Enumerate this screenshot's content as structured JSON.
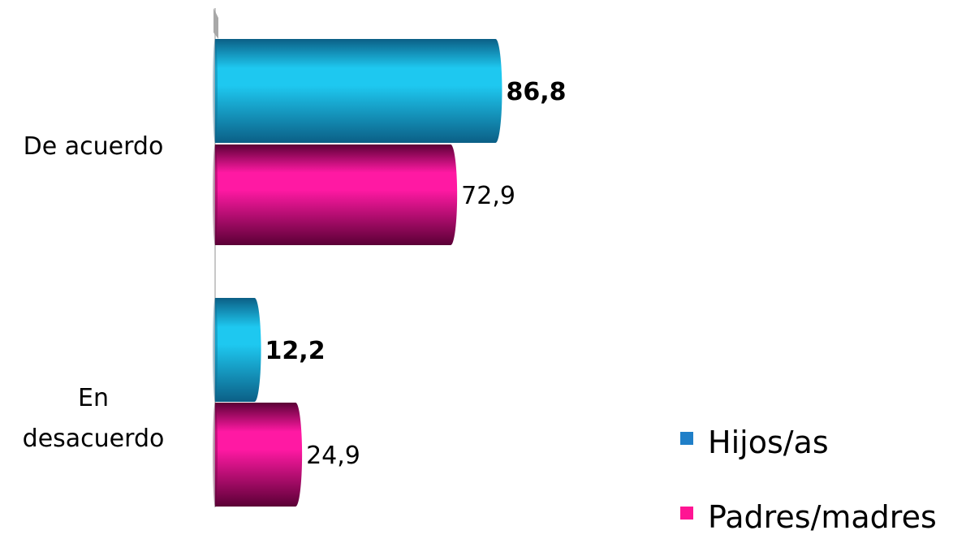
{
  "chart_data": {
    "type": "bar",
    "orientation": "horizontal",
    "style": "3d-cylinder",
    "categories": [
      "De acuerdo",
      "En\ndesacuerdo"
    ],
    "series": [
      {
        "name": "Hijos/as",
        "values": [
          86.8,
          12.2
        ],
        "labels": [
          "86,8",
          "12,2"
        ],
        "label_bold": true,
        "color": "#1ec8f0",
        "dark": "#0b5f86",
        "legend_color": "#1f7fc8"
      },
      {
        "name": "Padres/madres",
        "values": [
          72.9,
          24.9
        ],
        "labels": [
          "72,9",
          "24,9"
        ],
        "label_bold": false,
        "color": "#ff19a3",
        "dark": "#5b0036",
        "legend_color": "#ff1493"
      }
    ],
    "xlim": [
      0,
      100
    ],
    "grid": false,
    "legend": {
      "position": "bottom-right"
    }
  }
}
